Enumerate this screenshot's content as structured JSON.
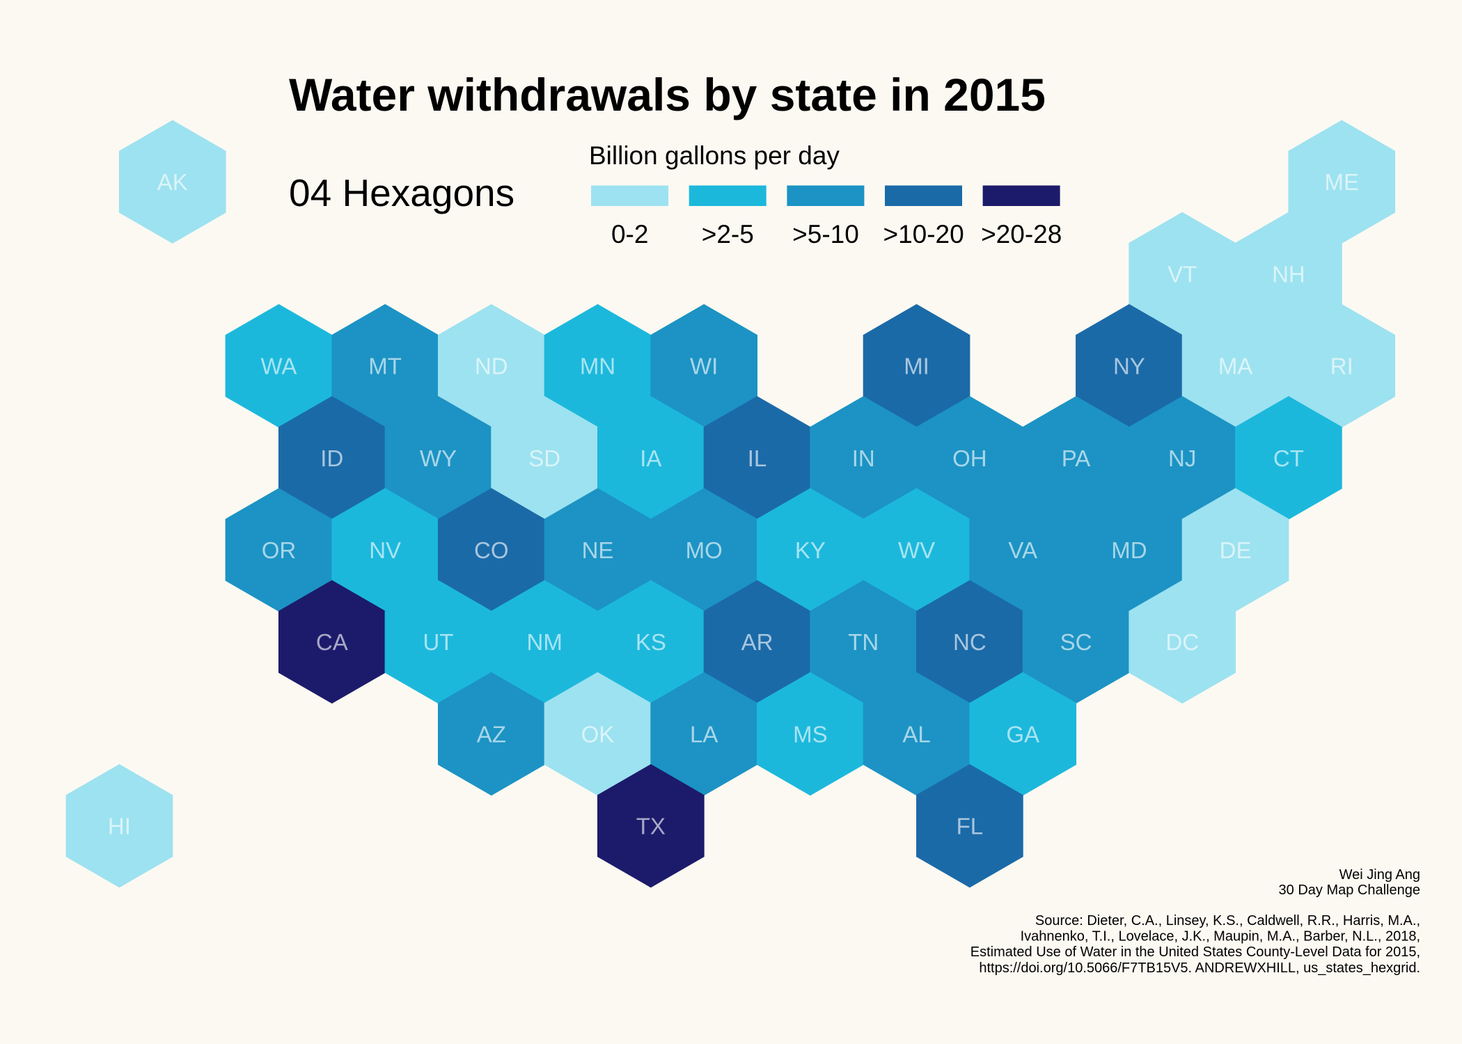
{
  "colors": {
    "background": "#fcf9f2"
  },
  "title": "Water withdrawals by state in 2015",
  "subtitle": "04 Hexagons",
  "legend": {
    "title": "Billion gallons per day",
    "items": [
      {
        "label": "0-2",
        "color": "#9de2f0"
      },
      {
        "label": ">2-5",
        "color": "#1cb8dc"
      },
      {
        "label": ">5-10",
        "color": "#1c93c4"
      },
      {
        "label": ">10-20",
        "color": "#1b6aa8"
      },
      {
        "label": ">20-28",
        "color": "#1c1b6b"
      }
    ]
  },
  "states": [
    {
      "abbr": "AK",
      "bin": "0-2"
    },
    {
      "abbr": "ME",
      "bin": "0-2"
    },
    {
      "abbr": "VT",
      "bin": "0-2"
    },
    {
      "abbr": "NH",
      "bin": "0-2"
    },
    {
      "abbr": "WA",
      "bin": ">2-5"
    },
    {
      "abbr": "MT",
      "bin": ">5-10"
    },
    {
      "abbr": "ND",
      "bin": "0-2"
    },
    {
      "abbr": "MN",
      "bin": ">2-5"
    },
    {
      "abbr": "WI",
      "bin": ">5-10"
    },
    {
      "abbr": "MI",
      "bin": ">10-20"
    },
    {
      "abbr": "NY",
      "bin": ">10-20"
    },
    {
      "abbr": "MA",
      "bin": "0-2"
    },
    {
      "abbr": "RI",
      "bin": "0-2"
    },
    {
      "abbr": "ID",
      "bin": ">10-20"
    },
    {
      "abbr": "WY",
      "bin": ">5-10"
    },
    {
      "abbr": "SD",
      "bin": "0-2"
    },
    {
      "abbr": "IA",
      "bin": ">2-5"
    },
    {
      "abbr": "IL",
      "bin": ">10-20"
    },
    {
      "abbr": "IN",
      "bin": ">5-10"
    },
    {
      "abbr": "OH",
      "bin": ">5-10"
    },
    {
      "abbr": "PA",
      "bin": ">5-10"
    },
    {
      "abbr": "NJ",
      "bin": ">5-10"
    },
    {
      "abbr": "CT",
      "bin": ">2-5"
    },
    {
      "abbr": "OR",
      "bin": ">5-10"
    },
    {
      "abbr": "NV",
      "bin": ">2-5"
    },
    {
      "abbr": "CO",
      "bin": ">10-20"
    },
    {
      "abbr": "NE",
      "bin": ">5-10"
    },
    {
      "abbr": "MO",
      "bin": ">5-10"
    },
    {
      "abbr": "KY",
      "bin": ">2-5"
    },
    {
      "abbr": "WV",
      "bin": ">2-5"
    },
    {
      "abbr": "VA",
      "bin": ">5-10"
    },
    {
      "abbr": "MD",
      "bin": ">5-10"
    },
    {
      "abbr": "DE",
      "bin": "0-2"
    },
    {
      "abbr": "CA",
      "bin": ">20-28"
    },
    {
      "abbr": "UT",
      "bin": ">2-5"
    },
    {
      "abbr": "NM",
      "bin": ">2-5"
    },
    {
      "abbr": "KS",
      "bin": ">2-5"
    },
    {
      "abbr": "AR",
      "bin": ">10-20"
    },
    {
      "abbr": "TN",
      "bin": ">5-10"
    },
    {
      "abbr": "NC",
      "bin": ">10-20"
    },
    {
      "abbr": "SC",
      "bin": ">5-10"
    },
    {
      "abbr": "DC",
      "bin": "0-2"
    },
    {
      "abbr": "AZ",
      "bin": ">5-10"
    },
    {
      "abbr": "OK",
      "bin": "0-2"
    },
    {
      "abbr": "LA",
      "bin": ">5-10"
    },
    {
      "abbr": "MS",
      "bin": ">2-5"
    },
    {
      "abbr": "AL",
      "bin": ">5-10"
    },
    {
      "abbr": "GA",
      "bin": ">2-5"
    },
    {
      "abbr": "HI",
      "bin": "0-2"
    },
    {
      "abbr": "TX",
      "bin": ">20-28"
    },
    {
      "abbr": "FL",
      "bin": ">10-20"
    }
  ],
  "credits": {
    "author": "Wei Jing Ang",
    "challenge": "30 Day Map Challenge",
    "source_lines": [
      "Source: Dieter, C.A., Linsey, K.S., Caldwell, R.R., Harris, M.A.,",
      "Ivahnenko, T.I., Lovelace, J.K., Maupin, M.A., Barber, N.L., 2018,",
      "Estimated Use of Water in the United States County-Level Data for 2015,",
      "https://doi.org/10.5066/F7TB15V5. ANDREWXHILL, us_states_hexgrid."
    ]
  }
}
